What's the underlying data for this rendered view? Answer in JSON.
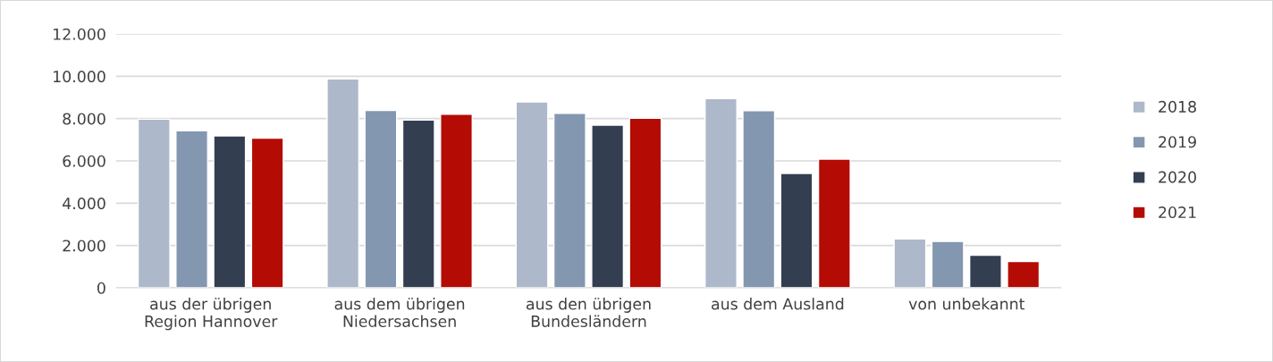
{
  "chart_data": {
    "type": "bar",
    "categories": [
      "aus der übrigen\nRegion Hannover",
      "aus dem übrigen\nNiedersachsen",
      "aus den übrigen\nBundesländern",
      "aus dem Ausland",
      "von unbekannt"
    ],
    "series": [
      {
        "name": "2018",
        "color": "#adb9ca",
        "values": [
          7970,
          9870,
          8790,
          8940,
          2310
        ]
      },
      {
        "name": "2019",
        "color": "#8497b0",
        "values": [
          7420,
          8390,
          8250,
          8370,
          2190
        ]
      },
      {
        "name": "2020",
        "color": "#333f50",
        "values": [
          7180,
          7930,
          7690,
          5410,
          1540
        ]
      },
      {
        "name": "2021",
        "color": "#b40b05",
        "values": [
          7070,
          8210,
          8010,
          6080,
          1240
        ]
      }
    ],
    "ylim": [
      0,
      12000
    ],
    "yticks": [
      {
        "value": 0,
        "label": "0"
      },
      {
        "value": 2000,
        "label": "2.000"
      },
      {
        "value": 4000,
        "label": "4.000"
      },
      {
        "value": 6000,
        "label": "6.000"
      },
      {
        "value": 8000,
        "label": "8.000"
      },
      {
        "value": 10000,
        "label": "10.000"
      },
      {
        "value": 12000,
        "label": "12.000"
      }
    ],
    "grid": "y",
    "legend": "right"
  }
}
